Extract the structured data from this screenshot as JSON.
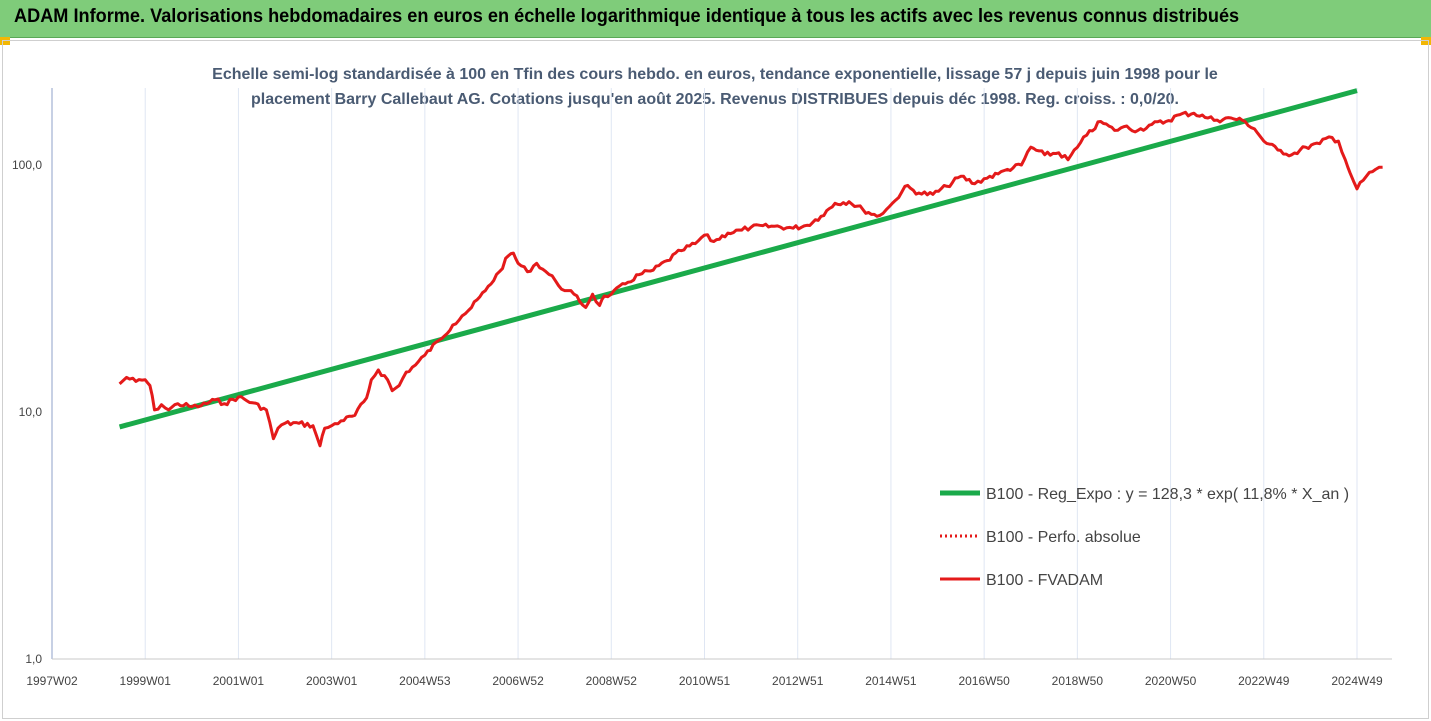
{
  "header": {
    "title": "ADAM Informe. Valorisations hebdomadaires en euros en échelle logarithmique identique à tous les actifs avec les revenus connus distribués"
  },
  "colors": {
    "header_bg": "#7fcc7a",
    "trend": "#1aaa4a",
    "fvadam": "#e41a1a",
    "perf": "#e41a1a",
    "subtitle": "#4a5b73",
    "grid": "#dfe6f3",
    "corner": "#f2b705"
  },
  "chart_data": {
    "type": "line",
    "title_line1": "Echelle semi-log standardisée à 100 en Tfin des cours hebdo. en euros, tendance exponentielle, lissage 57 j depuis juin 1998 pour le",
    "title_line2": "placement Barry Callebaut AG. Cotations jusqu'en août 2025. Revenus DISTRIBUES depuis déc 1998. Reg. croiss. : 0,0/20.",
    "y_scale": "log",
    "ylim": [
      1,
      200
    ],
    "y_ticks": [
      {
        "value": 1,
        "label": "1,0"
      },
      {
        "value": 10,
        "label": "10,0"
      },
      {
        "value": 100,
        "label": "100,0"
      }
    ],
    "xlim": [
      1997.0,
      2025.8
    ],
    "x_ticks": [
      {
        "value": 1997.0,
        "label": "1997W02"
      },
      {
        "value": 1999.0,
        "label": "1999W01"
      },
      {
        "value": 2001.0,
        "label": "2001W01"
      },
      {
        "value": 2003.0,
        "label": "2003W01"
      },
      {
        "value": 2005.0,
        "label": "2004W53"
      },
      {
        "value": 2007.0,
        "label": "2006W52"
      },
      {
        "value": 2009.0,
        "label": "2008W52"
      },
      {
        "value": 2011.0,
        "label": "2010W51"
      },
      {
        "value": 2013.0,
        "label": "2012W51"
      },
      {
        "value": 2015.0,
        "label": "2014W51"
      },
      {
        "value": 2017.0,
        "label": "2016W50"
      },
      {
        "value": 2019.0,
        "label": "2018W50"
      },
      {
        "value": 2021.0,
        "label": "2020W50"
      },
      {
        "value": 2023.0,
        "label": "2022W49"
      },
      {
        "value": 2025.0,
        "label": "2024W49"
      }
    ],
    "grid": true,
    "legend_position": "right",
    "series": [
      {
        "name": "B100 - Reg_Expo : y = 128,3 * exp( 11,8% * X_an )",
        "style": "solid-thick",
        "x": [
          1998.45,
          2025.0
        ],
        "y": [
          8.7,
          200
        ]
      },
      {
        "name": "B100 - Perfo. absolue",
        "style": "dotted",
        "x": [],
        "y": []
      },
      {
        "name": "B100 - FVADAM",
        "style": "solid",
        "x": [
          1998.45,
          1998.6,
          1998.8,
          1999.0,
          1999.1,
          1999.2,
          1999.35,
          1999.5,
          1999.7,
          2000.0,
          2000.2,
          2000.5,
          2000.7,
          2001.0,
          2001.3,
          2001.6,
          2001.75,
          2001.85,
          2002.0,
          2002.3,
          2002.6,
          2002.75,
          2002.85,
          2003.0,
          2003.2,
          2003.5,
          2003.75,
          2003.85,
          2004.0,
          2004.2,
          2004.3,
          2004.45,
          2004.6,
          2004.8,
          2005.0,
          2005.3,
          2005.6,
          2005.8,
          2006.0,
          2006.3,
          2006.6,
          2006.8,
          2006.9,
          2007.0,
          2007.2,
          2007.4,
          2007.6,
          2007.8,
          2008.0,
          2008.2,
          2008.45,
          2008.6,
          2008.75,
          2008.85,
          2009.0,
          2009.3,
          2009.6,
          2009.9,
          2010.2,
          2010.5,
          2010.8,
          2011.0,
          2011.2,
          2011.5,
          2011.8,
          2012.0,
          2012.5,
          2012.9,
          2013.2,
          2013.5,
          2013.8,
          2014.1,
          2014.4,
          2014.7,
          2014.9,
          2015.1,
          2015.3,
          2015.6,
          2015.9,
          2016.2,
          2016.5,
          2016.8,
          2017.0,
          2017.3,
          2017.5,
          2017.8,
          2018.0,
          2018.3,
          2018.6,
          2018.8,
          2019.0,
          2019.2,
          2019.5,
          2019.8,
          2020.0,
          2020.3,
          2020.6,
          2020.9,
          2021.2,
          2021.5,
          2021.8,
          2022.0,
          2022.3,
          2022.6,
          2022.8,
          2023.0,
          2023.3,
          2023.6,
          2023.9,
          2024.2,
          2024.4,
          2024.6,
          2024.75,
          2024.85,
          2025.0,
          2025.2,
          2025.4,
          2025.55
        ],
        "y": [
          13.0,
          13.8,
          13.3,
          13.5,
          12.8,
          10.2,
          10.7,
          10.2,
          10.8,
          10.5,
          10.6,
          11.2,
          10.8,
          11.5,
          10.9,
          10.2,
          7.8,
          8.6,
          9.0,
          9.0,
          8.8,
          7.3,
          8.6,
          8.8,
          9.2,
          9.7,
          11.4,
          13.5,
          14.8,
          13.5,
          12.2,
          12.8,
          14.5,
          15.5,
          17.0,
          19.5,
          22.5,
          24.5,
          26.5,
          31.0,
          37.0,
          43.0,
          44.0,
          40.0,
          37.0,
          40.0,
          37.0,
          34.0,
          31.0,
          30.0,
          26.5,
          30.0,
          27.0,
          29.5,
          30.0,
          33.0,
          36.0,
          37.5,
          41.0,
          45.0,
          48.0,
          52.0,
          49.0,
          53.0,
          54.5,
          56.0,
          56.5,
          55.5,
          57.0,
          62.0,
          70.0,
          71.0,
          66.0,
          62.0,
          66.0,
          72.0,
          82.0,
          77.0,
          76.0,
          82.0,
          90.0,
          84.0,
          88.0,
          92.0,
          96.0,
          100.0,
          118.0,
          110.0,
          112.0,
          105.0,
          118.0,
          132.0,
          150.0,
          138.0,
          143.0,
          138.0,
          146.0,
          150.0,
          160.0,
          162.0,
          155.0,
          152.0,
          155.0,
          150.0,
          140.0,
          125.0,
          115.0,
          110.0,
          118.0,
          122.0,
          130.0,
          125.0,
          105.0,
          93.0,
          80.0,
          90.0,
          96.0,
          98.0
        ]
      }
    ]
  }
}
